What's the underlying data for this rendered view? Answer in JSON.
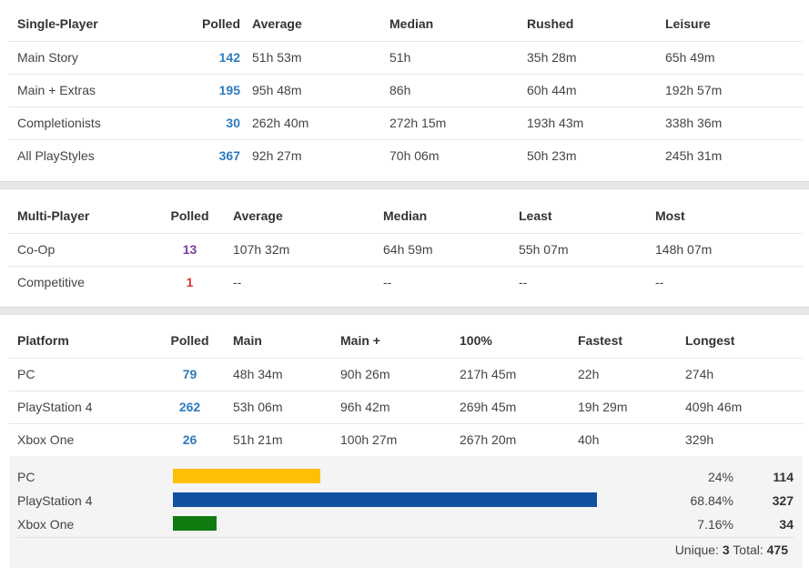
{
  "single_player": {
    "headers": [
      "Single-Player",
      "Polled",
      "Average",
      "Median",
      "Rushed",
      "Leisure"
    ],
    "rows": [
      {
        "label": "Main Story",
        "polled": "142",
        "average": "51h 53m",
        "median": "51h",
        "rushed": "35h 28m",
        "leisure": "65h 49m"
      },
      {
        "label": "Main + Extras",
        "polled": "195",
        "average": "95h 48m",
        "median": "86h",
        "rushed": "60h 44m",
        "leisure": "192h 57m"
      },
      {
        "label": "Completionists",
        "polled": "30",
        "average": "262h 40m",
        "median": "272h 15m",
        "rushed": "193h 43m",
        "leisure": "338h 36m"
      },
      {
        "label": "All PlayStyles",
        "polled": "367",
        "average": "92h 27m",
        "median": "70h 06m",
        "rushed": "50h 23m",
        "leisure": "245h 31m"
      }
    ]
  },
  "multi_player": {
    "headers": [
      "Multi-Player",
      "Polled",
      "Average",
      "Median",
      "Least",
      "Most"
    ],
    "rows": [
      {
        "label": "Co-Op",
        "polled": "13",
        "average": "107h 32m",
        "median": "64h 59m",
        "least": "55h 07m",
        "most": "148h 07m"
      },
      {
        "label": "Competitive",
        "polled": "1",
        "average": "--",
        "median": "--",
        "least": "--",
        "most": "--"
      }
    ]
  },
  "platform": {
    "headers": [
      "Platform",
      "Polled",
      "Main",
      "Main +",
      "100%",
      "Fastest",
      "Longest"
    ],
    "rows": [
      {
        "label": "PC",
        "polled": "79",
        "main": "48h 34m",
        "main_plus": "90h 26m",
        "completionist": "217h 45m",
        "fastest": "22h",
        "longest": "274h"
      },
      {
        "label": "PlayStation 4",
        "polled": "262",
        "main": "53h 06m",
        "main_plus": "96h 42m",
        "completionist": "269h 45m",
        "fastest": "19h 29m",
        "longest": "409h 46m"
      },
      {
        "label": "Xbox One",
        "polled": "26",
        "main": "51h 21m",
        "main_plus": "100h 27m",
        "completionist": "267h 20m",
        "fastest": "40h",
        "longest": "329h"
      }
    ]
  },
  "platform_share": {
    "rows": [
      {
        "label": "PC",
        "percent_text": "24%",
        "percent_value": 24,
        "count": "114",
        "color": "#fdc005"
      },
      {
        "label": "PlayStation 4",
        "percent_text": "68.84%",
        "percent_value": 68.84,
        "count": "327",
        "color": "#1151a2"
      },
      {
        "label": "Xbox One",
        "percent_text": "7.16%",
        "percent_value": 7.16,
        "count": "34",
        "color": "#107c10"
      }
    ],
    "unique_label": "Unique:",
    "unique_value": "3",
    "total_label": "Total:",
    "total_value": "475"
  },
  "colors": {
    "polled_blue": "#2e7bbf",
    "polled_purple": "#7a3fa0",
    "polled_red": "#e0303a"
  }
}
